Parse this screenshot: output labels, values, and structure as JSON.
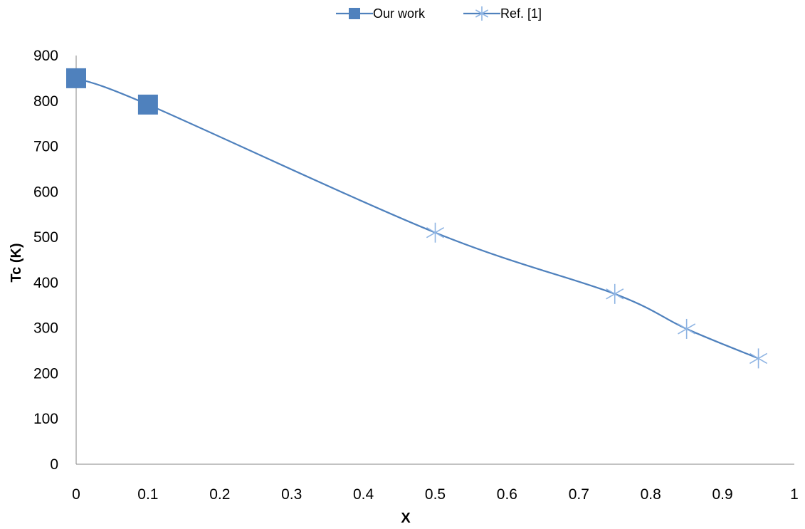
{
  "chart_data": {
    "type": "line",
    "title": "",
    "xlabel": "X",
    "ylabel": "Tc (K)",
    "xlim": [
      0,
      1
    ],
    "ylim": [
      0,
      900
    ],
    "xticks": [
      "0",
      "0.1",
      "0.2",
      "0.3",
      "0.4",
      "0.5",
      "0.6",
      "0.7",
      "0.8",
      "0.9",
      "1"
    ],
    "yticks": [
      "0",
      "100",
      "200",
      "300",
      "400",
      "500",
      "600",
      "700",
      "800",
      "900"
    ],
    "grid": false,
    "legend_position": "top-center",
    "line_color": "#4f81bd",
    "smooth": true,
    "curve": {
      "x": [
        0,
        0.1,
        0.5,
        0.75,
        0.85,
        0.95
      ],
      "y": [
        850,
        792,
        510,
        375,
        298,
        233
      ]
    },
    "series": [
      {
        "name": "Our work",
        "marker": "square",
        "color": "#4f81bd",
        "x": [
          0,
          0.1
        ],
        "y": [
          850,
          792
        ]
      },
      {
        "name": "Ref. [1]",
        "marker": "asterisk",
        "color": "#4f81bd",
        "x": [
          0.5,
          0.75,
          0.85,
          0.95
        ],
        "y": [
          510,
          375,
          298,
          233
        ]
      }
    ]
  }
}
